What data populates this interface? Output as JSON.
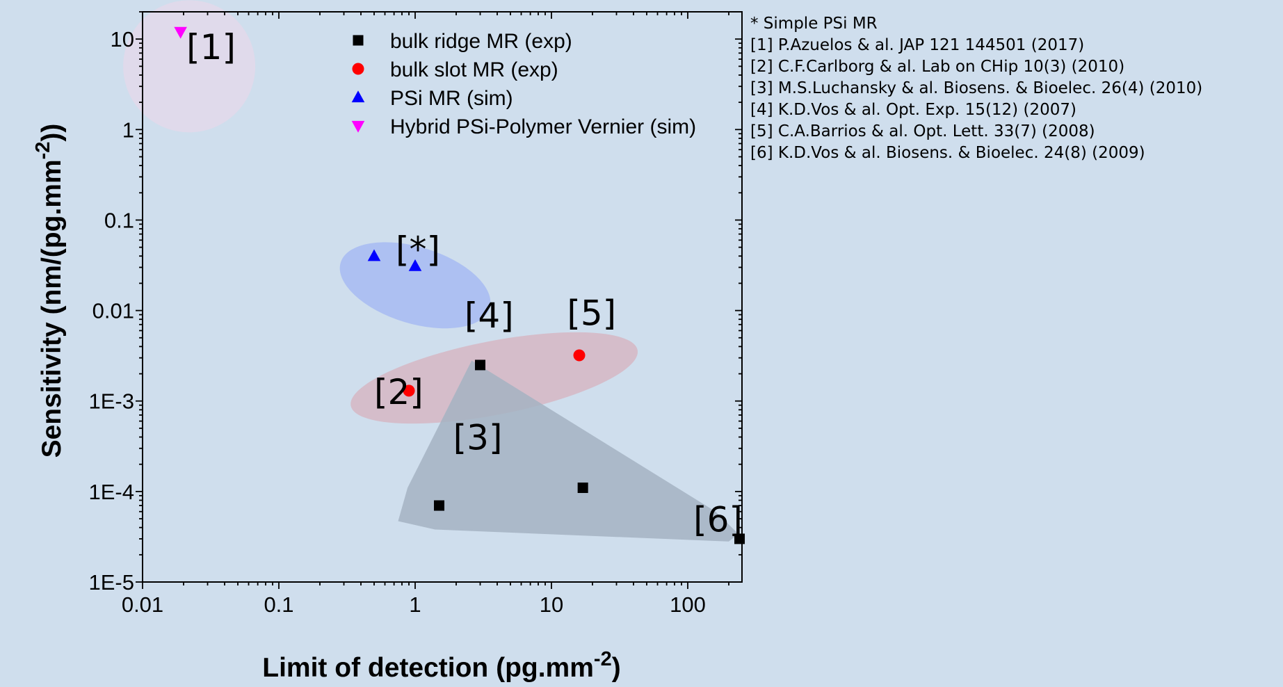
{
  "chart_data": {
    "type": "scatter",
    "xlabel": "Limit of detection (pg.mm",
    "xlabel_sup": "-2",
    "xlabel_tail": ")",
    "ylabel": "Sensitivity (nm/(pg.mm",
    "ylabel_sup": "-2",
    "ylabel_tail": "))",
    "x_scale": "log",
    "y_scale": "log",
    "xlim": [
      0.01,
      250
    ],
    "ylim": [
      1e-05,
      20
    ],
    "x_ticks": [
      {
        "value": 0.01,
        "label": "0.01"
      },
      {
        "value": 0.1,
        "label": "0.1"
      },
      {
        "value": 1,
        "label": "1"
      },
      {
        "value": 10,
        "label": "10"
      },
      {
        "value": 100,
        "label": "100"
      }
    ],
    "y_ticks": [
      {
        "value": 1e-05,
        "label": "1E-5"
      },
      {
        "value": 0.0001,
        "label": "1E-4"
      },
      {
        "value": 0.001,
        "label": "1E-3"
      },
      {
        "value": 0.01,
        "label": "0.01"
      },
      {
        "value": 0.1,
        "label": "0.1"
      },
      {
        "value": 1,
        "label": "1"
      },
      {
        "value": 10,
        "label": "10"
      }
    ],
    "legend_position": "top-right inside",
    "series": [
      {
        "name": "bulk ridge MR (exp)",
        "marker": "square",
        "color": "#000000",
        "points": [
          [
            3,
            0.0025
          ],
          [
            1.5,
            7e-05
          ],
          [
            17,
            0.00011
          ],
          [
            240,
            3e-05
          ]
        ]
      },
      {
        "name": "bulk slot MR (exp)",
        "marker": "circle",
        "color": "#ff0000",
        "points": [
          [
            0.9,
            0.0013
          ],
          [
            16,
            0.0032
          ]
        ]
      },
      {
        "name": "PSi MR (sim)",
        "marker": "triangle-up",
        "color": "#0000ff",
        "points": [
          [
            0.5,
            0.04
          ],
          [
            1,
            0.031
          ]
        ]
      },
      {
        "name": "Hybrid PSi-Polymer Vernier (sim)",
        "marker": "triangle-down",
        "color": "#ff00ff",
        "points": [
          [
            0.019,
            12
          ]
        ]
      }
    ],
    "annotations": [
      {
        "text": "[1]",
        "x": 0.021,
        "y": 6
      },
      {
        "text": "[*]",
        "x": 0.72,
        "y": 0.035
      },
      {
        "text": "[4]",
        "x": 2.3,
        "y": 0.0065
      },
      {
        "text": "[5]",
        "x": 13,
        "y": 0.0069
      },
      {
        "text": "[2]",
        "x": 0.5,
        "y": 0.00093
      },
      {
        "text": "[3]",
        "x": 1.9,
        "y": 0.00029
      },
      {
        "text": "[6]",
        "x": 110,
        "y": 3.6e-05
      }
    ],
    "shaded_regions": [
      {
        "label": "[1]",
        "color": "#e3d8ea"
      },
      {
        "label": "[*]",
        "color": "#a9bdf2"
      },
      {
        "label": "[2]-[5]",
        "color": "#d6b4c1"
      },
      {
        "label": "[3]-[6]",
        "color": "#a5b3c2"
      }
    ]
  },
  "references": {
    "title": "* Simple PSi MR",
    "items": [
      "[1] P.Azuelos & al. JAP 121 144501 (2017)",
      "[2] C.F.Carlborg & al. Lab on CHip 10(3) (2010)",
      "[3] M.S.Luchansky & al. Biosens. & Bioelec. 26(4) (2010)",
      "[4] K.D.Vos & al. Opt. Exp. 15(12) (2007)",
      "[5] C.A.Barrios & al. Opt. Lett. 33(7) (2008)",
      "[6] K.D.Vos & al. Biosens. & Bioelec. 24(8) (2009)"
    ]
  },
  "colors": {
    "background": "#cfdeed",
    "axis": "#000000"
  }
}
